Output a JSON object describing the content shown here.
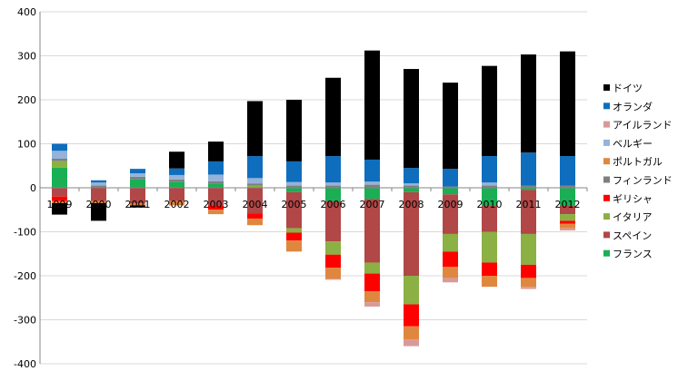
{
  "chart_data": {
    "type": "bar",
    "stacked": true,
    "categories": [
      "1999",
      "2000",
      "2001",
      "2002",
      "2003",
      "2004",
      "2005",
      "2006",
      "2007",
      "2008",
      "2009",
      "2010",
      "2011",
      "2012"
    ],
    "ylim": [
      -400,
      400
    ],
    "yticks": [
      -400,
      -300,
      -200,
      -100,
      0,
      100,
      200,
      300,
      400
    ],
    "grid": true,
    "legend_position": "right",
    "series": [
      {
        "name": "フランス",
        "color": "#1aaf54",
        "values": [
          46,
          0,
          20,
          14,
          10,
          0,
          -10,
          -30,
          -25,
          -10,
          -15,
          -40,
          -5,
          -40
        ]
      },
      {
        "name": "スペイン",
        "color": "#b14747",
        "values": [
          -20,
          -30,
          -35,
          -30,
          -40,
          -58,
          -82,
          -92,
          -145,
          -190,
          -90,
          -60,
          -100,
          -20
        ]
      },
      {
        "name": "イタリア",
        "color": "#8bb043",
        "values": [
          15,
          0,
          0,
          0,
          0,
          5,
          -10,
          -30,
          -25,
          -65,
          -40,
          -70,
          -70,
          -15
        ]
      },
      {
        "name": "ギリシャ",
        "color": "#ff0000",
        "values": [
          -10,
          0,
          0,
          0,
          -10,
          -12,
          -18,
          -30,
          -40,
          -50,
          -35,
          -30,
          -30,
          -7
        ]
      },
      {
        "name": "フィンランド",
        "color": "#7f7f7f",
        "values": [
          5,
          5,
          5,
          5,
          5,
          5,
          5,
          5,
          7,
          5,
          3,
          5,
          5,
          5
        ]
      },
      {
        "name": "ポルトガル",
        "color": "#e0873f",
        "values": [
          -5,
          -5,
          -5,
          -10,
          -10,
          -15,
          -25,
          -25,
          -25,
          -30,
          -25,
          -25,
          -20,
          -10
        ]
      },
      {
        "name": "ベルギー",
        "color": "#95b2d9",
        "values": [
          18,
          7,
          8,
          10,
          15,
          12,
          8,
          7,
          7,
          5,
          0,
          7,
          0,
          0
        ]
      },
      {
        "name": "アイルランド",
        "color": "#d89a99",
        "values": [
          0,
          0,
          0,
          0,
          0,
          0,
          0,
          -2,
          -10,
          -15,
          -10,
          0,
          -5,
          -5
        ]
      },
      {
        "name": "オランダ",
        "color": "#0e6ebd",
        "values": [
          16,
          5,
          10,
          15,
          30,
          50,
          47,
          60,
          50,
          35,
          40,
          60,
          75,
          67
        ]
      },
      {
        "name": "ドイツ",
        "color": "#000000",
        "values": [
          -26,
          -40,
          -5,
          38,
          45,
          125,
          140,
          178,
          248,
          225,
          196,
          205,
          223,
          238
        ]
      }
    ]
  }
}
